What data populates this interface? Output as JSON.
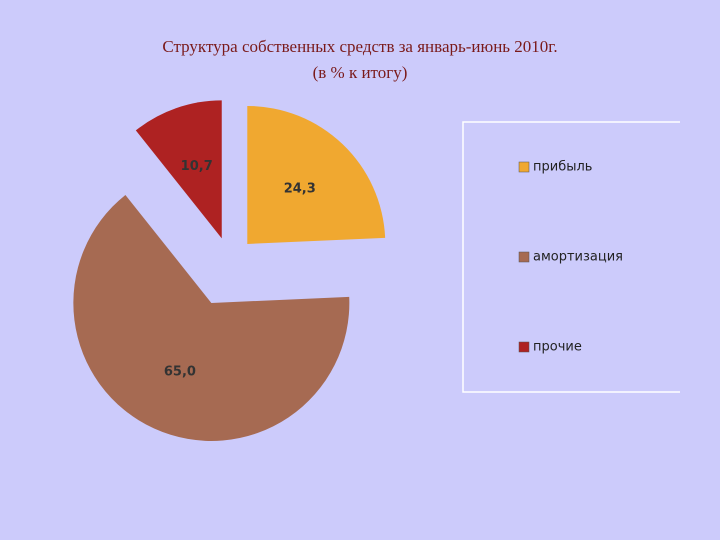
{
  "chart_data": {
    "type": "pie",
    "title": "Структура собственных средств за январь-июнь 2010г.",
    "subtitle": "(в % к итогу)",
    "categories": [
      "прибыль",
      "амортизация",
      "прочие"
    ],
    "values": [
      24.3,
      65.0,
      10.7
    ],
    "value_labels": [
      "24,3",
      "65,0",
      "10,7"
    ],
    "colors": [
      "#f0a830",
      "#a66a52",
      "#ae2222"
    ],
    "legend": "right"
  }
}
